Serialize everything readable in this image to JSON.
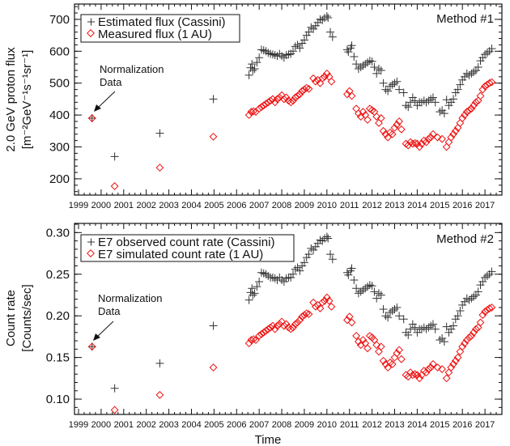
{
  "chart_data": [
    {
      "type": "scatter",
      "title": "",
      "panel_label": "Method #1",
      "xlabel": "",
      "ylabel": "2.0 GeV proton flux",
      "ylabel_units": "[m⁻²GeV⁻¹s⁻¹sr⁻¹]",
      "xlim": [
        1998.82,
        2017.75
      ],
      "ylim": [
        149,
        748
      ],
      "xticks": [
        1999,
        2000,
        2001,
        2002,
        2003,
        2004,
        2005,
        2006,
        2007,
        2008,
        2009,
        2010,
        2011,
        2012,
        2013,
        2014,
        2015,
        2016,
        2017
      ],
      "yticks": [
        200,
        300,
        400,
        500,
        600,
        700
      ],
      "ytick_labels": [
        "200",
        "300",
        "400",
        "500",
        "600",
        "700"
      ],
      "legend_position": "top-left",
      "annotation": {
        "line1": "Normalization",
        "line2": "Data",
        "x": 1999.6,
        "y": 390
      },
      "series": [
        {
          "name": "Estimated flux (Cassini)",
          "marker": "plus",
          "color": "#333333",
          "x": [
            1999.6,
            2000.6,
            2002.6,
            2004.97,
            2006.55,
            2006.62,
            2006.68,
            2006.72,
            2006.8,
            2006.9,
            2007.0,
            2007.1,
            2007.2,
            2007.3,
            2007.4,
            2007.5,
            2007.6,
            2007.7,
            2007.8,
            2007.9,
            2008.0,
            2008.1,
            2008.2,
            2008.3,
            2008.4,
            2008.5,
            2008.6,
            2008.7,
            2008.8,
            2008.9,
            2009.0,
            2009.1,
            2009.2,
            2009.3,
            2009.4,
            2009.5,
            2009.6,
            2009.7,
            2009.8,
            2009.9,
            2010.0,
            2010.05,
            2010.15,
            2010.25,
            2010.9,
            2010.95,
            2011.05,
            2011.1,
            2011.2,
            2011.3,
            2011.4,
            2011.5,
            2011.6,
            2011.7,
            2011.8,
            2011.9,
            2012.0,
            2012.1,
            2012.2,
            2012.3,
            2012.4,
            2012.5,
            2012.6,
            2012.7,
            2012.8,
            2012.9,
            2013.0,
            2013.1,
            2013.2,
            2013.4,
            2013.5,
            2013.6,
            2013.7,
            2013.8,
            2013.9,
            2014.0,
            2014.1,
            2014.2,
            2014.3,
            2014.4,
            2014.5,
            2014.6,
            2014.7,
            2014.8,
            2015.0,
            2015.1,
            2015.2,
            2015.3,
            2015.4,
            2015.5,
            2015.6,
            2015.7,
            2015.8,
            2015.9,
            2016.0,
            2016.1,
            2016.2,
            2016.3,
            2016.4,
            2016.5,
            2016.6,
            2016.7,
            2016.8,
            2016.9,
            2017.0,
            2017.1,
            2017.2,
            2017.3
          ],
          "y": [
            390,
            270,
            343,
            450,
            525,
            548,
            560,
            540,
            545,
            565,
            580,
            605,
            603,
            600,
            595,
            592,
            590,
            588,
            585,
            592,
            585,
            580,
            588,
            590,
            592,
            600,
            615,
            620,
            610,
            625,
            635,
            650,
            660,
            675,
            670,
            680,
            690,
            700,
            698,
            705,
            710,
            705,
            660,
            645,
            605,
            598,
            610,
            618,
            583,
            560,
            545,
            550,
            555,
            560,
            565,
            570,
            568,
            550,
            530,
            545,
            540,
            500,
            480,
            475,
            490,
            495,
            500,
            505,
            480,
            470,
            430,
            425,
            440,
            455,
            445,
            430,
            440,
            440,
            445,
            440,
            445,
            450,
            455,
            440,
            410,
            415,
            405,
            448,
            430,
            440,
            450,
            470,
            480,
            495,
            510,
            520,
            530,
            525,
            530,
            535,
            540,
            550,
            570,
            580,
            590,
            595,
            600,
            608
          ]
        },
        {
          "name": "Measured flux (1 AU)",
          "marker": "diamond",
          "color": "#ee1111",
          "x": [
            1999.6,
            2000.6,
            2002.6,
            2004.97,
            2006.55,
            2006.65,
            2006.75,
            2006.85,
            2007.0,
            2007.1,
            2007.2,
            2007.3,
            2007.4,
            2007.5,
            2007.6,
            2007.7,
            2007.8,
            2007.9,
            2008.0,
            2008.1,
            2008.2,
            2008.3,
            2008.4,
            2008.5,
            2008.6,
            2008.7,
            2008.8,
            2008.9,
            2009.0,
            2009.1,
            2009.2,
            2009.4,
            2009.5,
            2009.6,
            2009.7,
            2009.8,
            2009.9,
            2010.0,
            2010.1,
            2010.2,
            2010.9,
            2011.0,
            2011.1,
            2011.3,
            2011.4,
            2011.5,
            2011.6,
            2011.7,
            2011.8,
            2011.9,
            2012.0,
            2012.1,
            2012.2,
            2012.3,
            2012.4,
            2012.5,
            2012.6,
            2012.7,
            2012.8,
            2012.9,
            2013.0,
            2013.1,
            2013.2,
            2013.3,
            2013.5,
            2013.6,
            2013.7,
            2013.8,
            2013.9,
            2014.0,
            2014.1,
            2014.2,
            2014.3,
            2014.4,
            2014.5,
            2014.6,
            2014.7,
            2014.9,
            2015.1,
            2015.3,
            2015.4,
            2015.5,
            2015.6,
            2015.7,
            2015.8,
            2015.9,
            2016.0,
            2016.1,
            2016.2,
            2016.3,
            2016.4,
            2016.5,
            2016.6,
            2016.7,
            2016.8,
            2016.9,
            2017.0,
            2017.1,
            2017.2,
            2017.3
          ],
          "y": [
            390,
            177,
            235,
            332,
            400,
            410,
            412,
            410,
            420,
            425,
            430,
            435,
            440,
            445,
            450,
            440,
            450,
            455,
            462,
            450,
            455,
            445,
            440,
            445,
            455,
            460,
            465,
            475,
            480,
            485,
            482,
            515,
            505,
            510,
            500,
            515,
            520,
            530,
            520,
            505,
            465,
            475,
            460,
            420,
            405,
            395,
            410,
            400,
            385,
            420,
            415,
            410,
            395,
            375,
            390,
            350,
            340,
            330,
            345,
            340,
            360,
            370,
            380,
            355,
            310,
            305,
            315,
            310,
            312,
            310,
            300,
            310,
            320,
            315,
            325,
            330,
            340,
            330,
            325,
            300,
            315,
            330,
            340,
            350,
            360,
            375,
            390,
            400,
            410,
            415,
            420,
            430,
            440,
            445,
            460,
            480,
            490,
            495,
            500,
            503
          ]
        }
      ]
    },
    {
      "type": "scatter",
      "title": "",
      "panel_label": "Method #2",
      "xlabel": "Time",
      "ylabel": "Count rate",
      "ylabel_units": "[Counts/sec]",
      "xlim": [
        1998.82,
        2017.75
      ],
      "ylim": [
        0.0816,
        0.311
      ],
      "xticks": [
        1999,
        2000,
        2001,
        2002,
        2003,
        2004,
        2005,
        2006,
        2007,
        2008,
        2009,
        2010,
        2011,
        2012,
        2013,
        2014,
        2015,
        2016,
        2017
      ],
      "yticks": [
        0.1,
        0.15,
        0.2,
        0.25,
        0.3
      ],
      "ytick_labels": [
        "0.10",
        "0.15",
        "0.20",
        "0.25",
        "0.30"
      ],
      "legend_position": "top-left",
      "annotation": {
        "line1": "Normalization",
        "line2": "Data",
        "x": 1999.6,
        "y": 0.163
      },
      "series": [
        {
          "name": "E7 observed count rate (Cassini)",
          "marker": "plus",
          "color": "#333333",
          "x": [
            1999.6,
            2000.6,
            2002.6,
            2004.97,
            2006.55,
            2006.62,
            2006.68,
            2006.72,
            2006.8,
            2006.9,
            2007.0,
            2007.1,
            2007.2,
            2007.3,
            2007.4,
            2007.5,
            2007.6,
            2007.7,
            2007.8,
            2007.9,
            2008.0,
            2008.1,
            2008.2,
            2008.3,
            2008.4,
            2008.5,
            2008.6,
            2008.7,
            2008.8,
            2008.9,
            2009.0,
            2009.1,
            2009.2,
            2009.3,
            2009.4,
            2009.5,
            2009.6,
            2009.7,
            2009.8,
            2009.9,
            2010.0,
            2010.05,
            2010.15,
            2010.25,
            2010.9,
            2010.95,
            2011.05,
            2011.1,
            2011.2,
            2011.3,
            2011.4,
            2011.5,
            2011.6,
            2011.7,
            2011.8,
            2011.9,
            2012.0,
            2012.1,
            2012.2,
            2012.3,
            2012.4,
            2012.5,
            2012.6,
            2012.7,
            2012.8,
            2012.9,
            2013.0,
            2013.1,
            2013.2,
            2013.4,
            2013.5,
            2013.6,
            2013.7,
            2013.8,
            2013.9,
            2014.0,
            2014.1,
            2014.2,
            2014.3,
            2014.4,
            2014.5,
            2014.6,
            2014.7,
            2014.8,
            2015.0,
            2015.1,
            2015.2,
            2015.3,
            2015.4,
            2015.5,
            2015.6,
            2015.7,
            2015.8,
            2015.9,
            2016.0,
            2016.1,
            2016.2,
            2016.3,
            2016.4,
            2016.5,
            2016.6,
            2016.7,
            2016.8,
            2016.9,
            2017.0,
            2017.1,
            2017.2,
            2017.3
          ],
          "y": [
            0.163,
            0.113,
            0.143,
            0.188,
            0.219,
            0.228,
            0.233,
            0.225,
            0.227,
            0.235,
            0.241,
            0.252,
            0.251,
            0.25,
            0.248,
            0.246,
            0.246,
            0.245,
            0.243,
            0.246,
            0.243,
            0.241,
            0.245,
            0.246,
            0.246,
            0.25,
            0.256,
            0.258,
            0.254,
            0.26,
            0.264,
            0.27,
            0.274,
            0.281,
            0.279,
            0.283,
            0.287,
            0.291,
            0.29,
            0.293,
            0.295,
            0.293,
            0.274,
            0.268,
            0.252,
            0.249,
            0.254,
            0.257,
            0.243,
            0.233,
            0.227,
            0.229,
            0.231,
            0.233,
            0.235,
            0.237,
            0.236,
            0.229,
            0.221,
            0.227,
            0.225,
            0.208,
            0.2,
            0.198,
            0.204,
            0.206,
            0.208,
            0.21,
            0.2,
            0.196,
            0.18,
            0.177,
            0.184,
            0.19,
            0.186,
            0.18,
            0.184,
            0.184,
            0.186,
            0.184,
            0.186,
            0.188,
            0.19,
            0.184,
            0.171,
            0.173,
            0.169,
            0.187,
            0.18,
            0.184,
            0.188,
            0.196,
            0.2,
            0.206,
            0.213,
            0.217,
            0.221,
            0.219,
            0.221,
            0.223,
            0.225,
            0.229,
            0.237,
            0.241,
            0.246,
            0.248,
            0.25,
            0.253
          ]
        },
        {
          "name": "E7 simulated count rate (1 AU)",
          "marker": "diamond",
          "color": "#ee1111",
          "x": [
            1999.6,
            2000.6,
            2002.6,
            2004.97,
            2006.55,
            2006.65,
            2006.75,
            2006.85,
            2007.0,
            2007.1,
            2007.2,
            2007.3,
            2007.4,
            2007.5,
            2007.6,
            2007.7,
            2007.8,
            2007.9,
            2008.0,
            2008.1,
            2008.2,
            2008.3,
            2008.4,
            2008.5,
            2008.6,
            2008.7,
            2008.8,
            2008.9,
            2009.0,
            2009.1,
            2009.2,
            2009.4,
            2009.5,
            2009.6,
            2009.7,
            2009.8,
            2009.9,
            2010.0,
            2010.1,
            2010.2,
            2010.9,
            2011.0,
            2011.1,
            2011.3,
            2011.4,
            2011.5,
            2011.6,
            2011.7,
            2011.8,
            2011.9,
            2012.0,
            2012.1,
            2012.2,
            2012.3,
            2012.4,
            2012.5,
            2012.6,
            2012.7,
            2012.8,
            2012.9,
            2013.0,
            2013.1,
            2013.2,
            2013.3,
            2013.5,
            2013.6,
            2013.7,
            2013.8,
            2013.9,
            2014.0,
            2014.1,
            2014.2,
            2014.3,
            2014.4,
            2014.5,
            2014.6,
            2014.7,
            2014.9,
            2015.1,
            2015.3,
            2015.4,
            2015.5,
            2015.6,
            2015.7,
            2015.8,
            2015.9,
            2016.0,
            2016.1,
            2016.2,
            2016.3,
            2016.4,
            2016.5,
            2016.6,
            2016.7,
            2016.8,
            2016.9,
            2017.0,
            2017.1,
            2017.2,
            2017.3
          ],
          "y": [
            0.163,
            0.087,
            0.105,
            0.138,
            0.167,
            0.171,
            0.172,
            0.171,
            0.176,
            0.178,
            0.18,
            0.182,
            0.184,
            0.186,
            0.188,
            0.184,
            0.188,
            0.19,
            0.193,
            0.188,
            0.19,
            0.186,
            0.184,
            0.186,
            0.19,
            0.192,
            0.195,
            0.199,
            0.201,
            0.203,
            0.202,
            0.216,
            0.211,
            0.213,
            0.209,
            0.216,
            0.218,
            0.222,
            0.218,
            0.211,
            0.195,
            0.199,
            0.192,
            0.176,
            0.169,
            0.165,
            0.171,
            0.167,
            0.161,
            0.176,
            0.174,
            0.171,
            0.165,
            0.157,
            0.163,
            0.146,
            0.142,
            0.138,
            0.144,
            0.142,
            0.15,
            0.155,
            0.159,
            0.148,
            0.129,
            0.127,
            0.132,
            0.129,
            0.13,
            0.129,
            0.125,
            0.129,
            0.134,
            0.132,
            0.136,
            0.138,
            0.142,
            0.138,
            0.136,
            0.125,
            0.132,
            0.138,
            0.142,
            0.146,
            0.15,
            0.157,
            0.163,
            0.167,
            0.171,
            0.174,
            0.176,
            0.18,
            0.184,
            0.186,
            0.192,
            0.201,
            0.205,
            0.207,
            0.209,
            0.21
          ]
        }
      ]
    }
  ]
}
